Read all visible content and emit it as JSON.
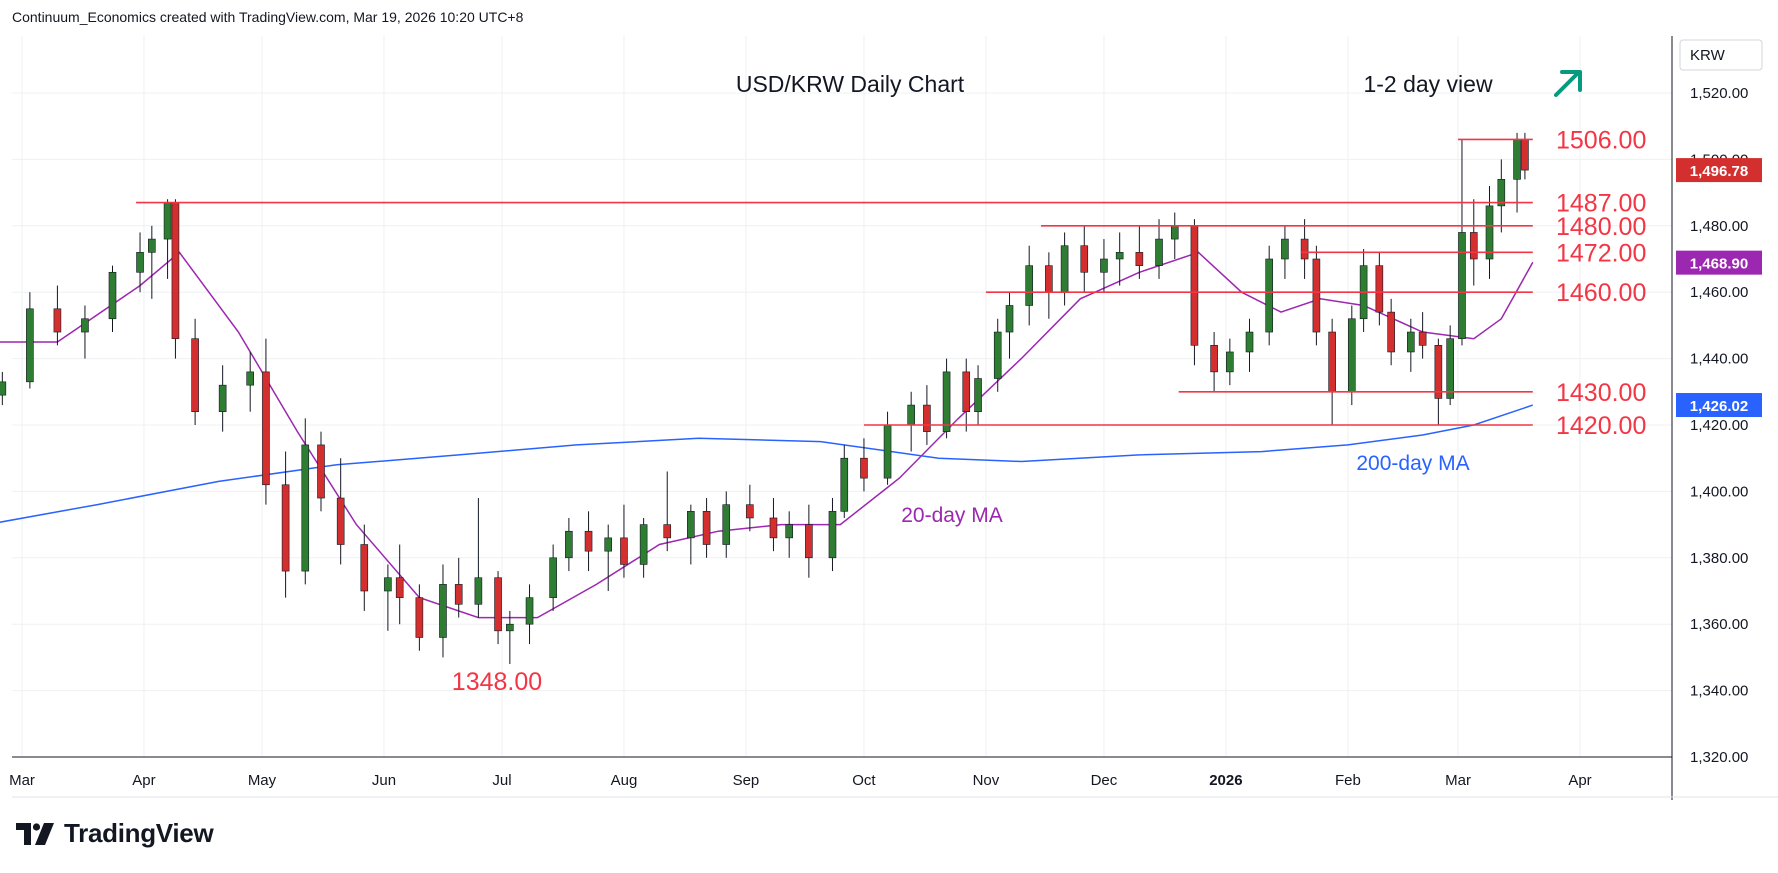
{
  "header": {
    "credit": "Continuum_Economics created with TradingView.com, Mar 19, 2026 10:20 UTC+8"
  },
  "logo": {
    "text": "TradingView"
  },
  "colors": {
    "up": "#2e7d32",
    "down": "#d32f2f",
    "level": "#f23645",
    "ma20": "#9c27b0",
    "ma200": "#2962ff",
    "arrow": "#089981"
  },
  "chart_data": {
    "type": "candlestick",
    "title": "USD/KRW Daily Chart",
    "view_label": "1-2 day view",
    "view_icon": "up-right-arrow-icon",
    "currency_label": "KRW",
    "x_ticks": [
      "Mar",
      "Apr",
      "May",
      "Jun",
      "Jul",
      "Aug",
      "Sep",
      "Oct",
      "Nov",
      "Dec",
      "2026",
      "Feb",
      "Mar",
      "Apr"
    ],
    "y_ticks": [
      "1,320.00",
      "1,340.00",
      "1,360.00",
      "1,380.00",
      "1,400.00",
      "1,420.00",
      "1,440.00",
      "1,460.00",
      "1,480.00",
      "1,500.00",
      "1,520.00"
    ],
    "ylim": [
      1320,
      1530
    ],
    "price_badges": [
      {
        "label": "1,496.78",
        "value": 1496.78,
        "color": "#d32f2f"
      },
      {
        "label": "1,468.90",
        "value": 1468.9,
        "color": "#9c27b0"
      },
      {
        "label": "1,426.02",
        "value": 1426.02,
        "color": "#2962ff"
      }
    ],
    "levels": [
      {
        "label": "1506.00",
        "value": 1506,
        "from": "2026-03-01",
        "to": "2026-03-20"
      },
      {
        "label": "1487.00",
        "value": 1487,
        "from": "2025-03-30",
        "to": "2026-03-20"
      },
      {
        "label": "1480.00",
        "value": 1480,
        "from": "2025-11-15",
        "to": "2026-03-20"
      },
      {
        "label": "1472.00",
        "value": 1472,
        "from": "2026-01-20",
        "to": "2026-03-20"
      },
      {
        "label": "1460.00",
        "value": 1460,
        "from": "2025-11-01",
        "to": "2026-03-20"
      },
      {
        "label": "1430.00",
        "value": 1430,
        "from": "2025-12-20",
        "to": "2026-03-20"
      },
      {
        "label": "1420.00",
        "value": 1420,
        "from": "2025-10-01",
        "to": "2026-03-20"
      }
    ],
    "low_label": {
      "label": "1348.00",
      "value": 1348,
      "date": "2025-07-01"
    },
    "annotations": [
      {
        "label": "20-day MA",
        "date": "2025-11-01",
        "value": 1392
      },
      {
        "label": "200-day MA",
        "date": "2026-03-01",
        "value": 1408
      }
    ],
    "series": [
      {
        "name": "20-day MA",
        "points": [
          [
            "2025-02-20",
            1445
          ],
          [
            "2025-03-10",
            1445
          ],
          [
            "2025-03-31",
            1462
          ],
          [
            "2025-04-10",
            1472
          ],
          [
            "2025-04-25",
            1448
          ],
          [
            "2025-05-10",
            1418
          ],
          [
            "2025-05-25",
            1390
          ],
          [
            "2025-06-10",
            1368
          ],
          [
            "2025-06-25",
            1362
          ],
          [
            "2025-07-10",
            1362
          ],
          [
            "2025-07-25",
            1372
          ],
          [
            "2025-08-10",
            1384
          ],
          [
            "2025-08-25",
            1388
          ],
          [
            "2025-09-10",
            1390
          ],
          [
            "2025-09-25",
            1390
          ],
          [
            "2025-10-10",
            1404
          ],
          [
            "2025-10-25",
            1422
          ],
          [
            "2025-11-10",
            1440
          ],
          [
            "2025-11-25",
            1458
          ],
          [
            "2025-12-10",
            1466
          ],
          [
            "2025-12-25",
            1472
          ],
          [
            "2026-01-05",
            1460
          ],
          [
            "2026-01-15",
            1454
          ],
          [
            "2026-01-25",
            1458
          ],
          [
            "2026-02-05",
            1456
          ],
          [
            "2026-02-20",
            1448
          ],
          [
            "2026-03-05",
            1446
          ],
          [
            "2026-03-12",
            1452
          ],
          [
            "2026-03-20",
            1469
          ]
        ]
      },
      {
        "name": "200-day MA",
        "points": [
          [
            "2025-02-20",
            1390
          ],
          [
            "2025-03-20",
            1396
          ],
          [
            "2025-04-20",
            1403
          ],
          [
            "2025-05-20",
            1408
          ],
          [
            "2025-06-20",
            1411
          ],
          [
            "2025-07-20",
            1414
          ],
          [
            "2025-08-20",
            1416
          ],
          [
            "2025-09-20",
            1415
          ],
          [
            "2025-10-20",
            1410
          ],
          [
            "2025-11-10",
            1409
          ],
          [
            "2025-12-10",
            1411
          ],
          [
            "2026-01-10",
            1412
          ],
          [
            "2026-02-01",
            1414
          ],
          [
            "2026-02-20",
            1417
          ],
          [
            "2026-03-05",
            1420
          ],
          [
            "2026-03-20",
            1426
          ]
        ]
      }
    ],
    "candles": [
      [
        "2025-02-24",
        1429,
        1436,
        1426,
        1433
      ],
      [
        "2025-03-03",
        1433,
        1460,
        1431,
        1455
      ],
      [
        "2025-03-10",
        1455,
        1462,
        1444,
        1448
      ],
      [
        "2025-03-17",
        1448,
        1456,
        1440,
        1452
      ],
      [
        "2025-03-24",
        1452,
        1468,
        1448,
        1466
      ],
      [
        "2025-03-31",
        1466,
        1478,
        1460,
        1472
      ],
      [
        "2025-04-03",
        1472,
        1480,
        1458,
        1476
      ],
      [
        "2025-04-07",
        1476,
        1488,
        1464,
        1487
      ],
      [
        "2025-04-09",
        1487,
        1488,
        1440,
        1446
      ],
      [
        "2025-04-14",
        1446,
        1452,
        1420,
        1424
      ],
      [
        "2025-04-21",
        1424,
        1438,
        1418,
        1432
      ],
      [
        "2025-04-28",
        1432,
        1442,
        1424,
        1436
      ],
      [
        "2025-05-02",
        1436,
        1446,
        1396,
        1402
      ],
      [
        "2025-05-07",
        1402,
        1412,
        1368,
        1376
      ],
      [
        "2025-05-12",
        1376,
        1422,
        1372,
        1414
      ],
      [
        "2025-05-16",
        1414,
        1418,
        1394,
        1398
      ],
      [
        "2025-05-21",
        1398,
        1410,
        1378,
        1384
      ],
      [
        "2025-05-27",
        1384,
        1390,
        1364,
        1370
      ],
      [
        "2025-06-02",
        1370,
        1378,
        1358,
        1374
      ],
      [
        "2025-06-05",
        1374,
        1384,
        1360,
        1368
      ],
      [
        "2025-06-10",
        1368,
        1372,
        1352,
        1356
      ],
      [
        "2025-06-16",
        1356,
        1378,
        1350,
        1372
      ],
      [
        "2025-06-20",
        1372,
        1380,
        1362,
        1366
      ],
      [
        "2025-06-25",
        1366,
        1398,
        1362,
        1374
      ],
      [
        "2025-06-30",
        1374,
        1376,
        1354,
        1358
      ],
      [
        "2025-07-03",
        1358,
        1364,
        1348,
        1360
      ],
      [
        "2025-07-08",
        1360,
        1372,
        1354,
        1368
      ],
      [
        "2025-07-14",
        1368,
        1384,
        1364,
        1380
      ],
      [
        "2025-07-18",
        1380,
        1392,
        1376,
        1388
      ],
      [
        "2025-07-23",
        1388,
        1394,
        1376,
        1382
      ],
      [
        "2025-07-28",
        1382,
        1390,
        1370,
        1386
      ],
      [
        "2025-08-01",
        1386,
        1396,
        1374,
        1378
      ],
      [
        "2025-08-06",
        1378,
        1392,
        1374,
        1390
      ],
      [
        "2025-08-12",
        1390,
        1406,
        1382,
        1386
      ],
      [
        "2025-08-18",
        1386,
        1396,
        1378,
        1394
      ],
      [
        "2025-08-22",
        1394,
        1398,
        1380,
        1384
      ],
      [
        "2025-08-27",
        1384,
        1400,
        1380,
        1396
      ],
      [
        "2025-09-02",
        1396,
        1402,
        1388,
        1392
      ],
      [
        "2025-09-08",
        1392,
        1398,
        1382,
        1386
      ],
      [
        "2025-09-12",
        1386,
        1394,
        1380,
        1390
      ],
      [
        "2025-09-17",
        1390,
        1396,
        1374,
        1380
      ],
      [
        "2025-09-23",
        1380,
        1398,
        1376,
        1394
      ],
      [
        "2025-09-26",
        1394,
        1414,
        1392,
        1410
      ],
      [
        "2025-10-01",
        1410,
        1416,
        1400,
        1404
      ],
      [
        "2025-10-07",
        1404,
        1424,
        1402,
        1420
      ],
      [
        "2025-10-13",
        1420,
        1430,
        1412,
        1426
      ],
      [
        "2025-10-17",
        1426,
        1432,
        1414,
        1418
      ],
      [
        "2025-10-22",
        1418,
        1440,
        1416,
        1436
      ],
      [
        "2025-10-27",
        1436,
        1440,
        1418,
        1424
      ],
      [
        "2025-10-30",
        1424,
        1438,
        1420,
        1434
      ],
      [
        "2025-11-04",
        1434,
        1452,
        1430,
        1448
      ],
      [
        "2025-11-07",
        1448,
        1460,
        1440,
        1456
      ],
      [
        "2025-11-12",
        1456,
        1474,
        1450,
        1468
      ],
      [
        "2025-11-17",
        1468,
        1472,
        1452,
        1460
      ],
      [
        "2025-11-21",
        1460,
        1478,
        1456,
        1474
      ],
      [
        "2025-11-26",
        1474,
        1480,
        1460,
        1466
      ],
      [
        "2025-12-01",
        1466,
        1476,
        1460,
        1470
      ],
      [
        "2025-12-05",
        1470,
        1478,
        1462,
        1472
      ],
      [
        "2025-12-10",
        1472,
        1480,
        1464,
        1468
      ],
      [
        "2025-12-15",
        1468,
        1482,
        1464,
        1476
      ],
      [
        "2025-12-19",
        1476,
        1484,
        1470,
        1480
      ],
      [
        "2025-12-24",
        1480,
        1482,
        1438,
        1444
      ],
      [
        "2025-12-29",
        1444,
        1448,
        1430,
        1436
      ],
      [
        "2026-01-02",
        1436,
        1446,
        1432,
        1442
      ],
      [
        "2026-01-07",
        1442,
        1452,
        1436,
        1448
      ],
      [
        "2026-01-12",
        1448,
        1474,
        1444,
        1470
      ],
      [
        "2026-01-16",
        1470,
        1480,
        1464,
        1476
      ],
      [
        "2026-01-21",
        1476,
        1482,
        1464,
        1470
      ],
      [
        "2026-01-24",
        1470,
        1474,
        1444,
        1448
      ],
      [
        "2026-01-28",
        1448,
        1452,
        1420,
        1430
      ],
      [
        "2026-02-02",
        1430,
        1456,
        1426,
        1452
      ],
      [
        "2026-02-05",
        1452,
        1473,
        1448,
        1468
      ],
      [
        "2026-02-09",
        1468,
        1472,
        1450,
        1454
      ],
      [
        "2026-02-12",
        1454,
        1458,
        1438,
        1442
      ],
      [
        "2026-02-17",
        1442,
        1452,
        1436,
        1448
      ],
      [
        "2026-02-20",
        1448,
        1454,
        1440,
        1444
      ],
      [
        "2026-02-24",
        1444,
        1446,
        1420,
        1428
      ],
      [
        "2026-02-27",
        1428,
        1450,
        1426,
        1446
      ],
      [
        "2026-03-02",
        1446,
        1506,
        1444,
        1478
      ],
      [
        "2026-03-05",
        1478,
        1488,
        1462,
        1470
      ],
      [
        "2026-03-09",
        1470,
        1492,
        1464,
        1486
      ],
      [
        "2026-03-12",
        1486,
        1500,
        1478,
        1494
      ],
      [
        "2026-03-16",
        1494,
        1508,
        1484,
        1506
      ],
      [
        "2026-03-18",
        1506,
        1508,
        1494,
        1496.78
      ]
    ]
  }
}
